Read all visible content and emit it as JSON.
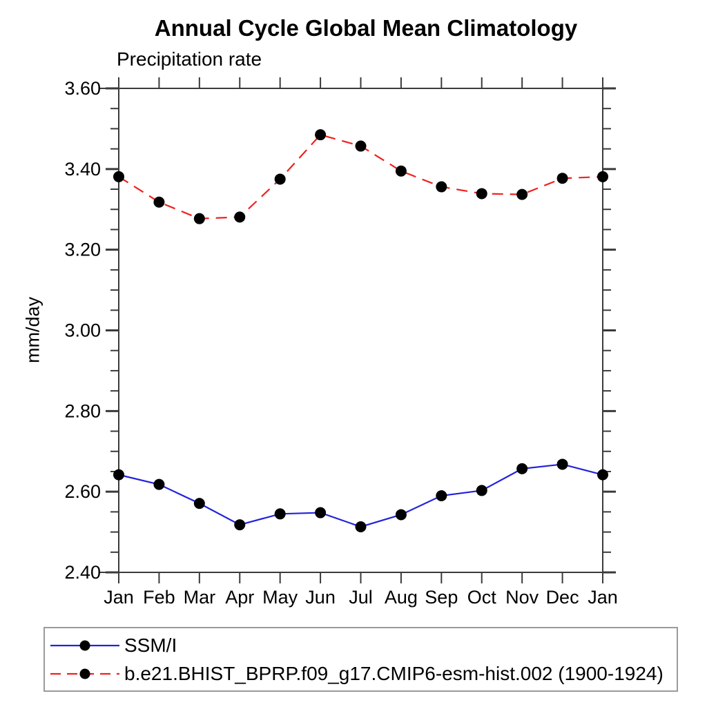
{
  "chart_data": {
    "type": "line",
    "title": "Annual Cycle Global Mean Climatology",
    "subtitle": "Precipitation rate",
    "ylabel": "mm/day",
    "xlabel": "",
    "categories": [
      "Jan",
      "Feb",
      "Mar",
      "Apr",
      "May",
      "Jun",
      "Jul",
      "Aug",
      "Sep",
      "Oct",
      "Nov",
      "Dec",
      "Jan"
    ],
    "ylim": [
      2.4,
      3.6
    ],
    "yticks_major": [
      2.4,
      2.6,
      2.8,
      3.0,
      3.2,
      3.4,
      3.6
    ],
    "ytick_labels": [
      "2.40",
      "2.60",
      "2.80",
      "3.00",
      "3.20",
      "3.40",
      "3.60"
    ],
    "yminor_step": 0.05,
    "grid": false,
    "legend_position": "bottom-left-box",
    "axis_color": "#3a3a3a",
    "marker": "filled-circle",
    "series": [
      {
        "name": "SSM/I",
        "color": "#2222dd",
        "line_style": "solid",
        "marker_color": "#000000",
        "values": [
          2.642,
          2.618,
          2.571,
          2.518,
          2.545,
          2.548,
          2.513,
          2.543,
          2.59,
          2.603,
          2.657,
          2.668,
          2.642
        ]
      },
      {
        "name": "b.e21.BHIST_BPRP.f09_g17.CMIP6-esm-hist.002 (1900-1924)",
        "color": "#f02020",
        "line_style": "dashed",
        "marker_color": "#000000",
        "values": [
          3.381,
          3.318,
          3.277,
          3.281,
          3.375,
          3.485,
          3.457,
          3.395,
          3.356,
          3.339,
          3.337,
          3.377,
          3.381
        ]
      }
    ]
  }
}
